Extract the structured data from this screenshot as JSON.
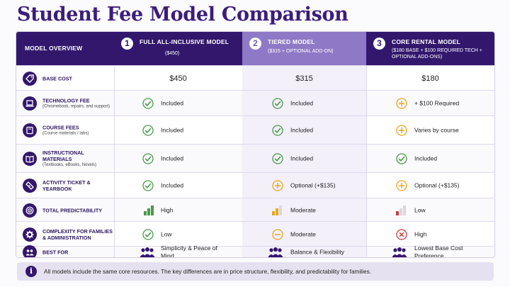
{
  "title": "Student Fee Model Comparison",
  "header": {
    "overview_label": "MODEL OVERVIEW",
    "models": [
      {
        "number": "1",
        "name": "FULL ALL-INCLUSIVE MODEL",
        "subtitle": "($450)"
      },
      {
        "number": "2",
        "name": "TIERED MODEL",
        "subtitle": "($315 + OPTIONAL ADD-ON)"
      },
      {
        "number": "3",
        "name": "CORE RENTAL MODEL",
        "subtitle": "($180 BASE + $100 REQUIRED TECH + OPTIONAL ADD-ONS)"
      }
    ]
  },
  "rows": [
    {
      "icon": "tag-icon",
      "label": "BASE COST",
      "sub": "",
      "values": [
        {
          "text": "$450"
        },
        {
          "text": "$315"
        },
        {
          "text": "$180"
        }
      ]
    },
    {
      "icon": "laptop-icon",
      "label": "TECHNOLOGY FEE",
      "sub": "(Chromebook, repairs, and support)",
      "values": [
        {
          "status": "check",
          "text": "Included"
        },
        {
          "status": "check",
          "text": "Included"
        },
        {
          "status": "plus",
          "text": "+ $100 Required"
        }
      ]
    },
    {
      "icon": "book-icon",
      "label": "COURSE FEES",
      "sub": "(Course materials / labs)",
      "values": [
        {
          "status": "check",
          "text": "Included"
        },
        {
          "status": "check",
          "text": "Included"
        },
        {
          "status": "plus",
          "text": "Varies by course"
        }
      ]
    },
    {
      "icon": "open-book-icon",
      "label": "INSTRUCTIONAL MATERIALS",
      "sub": "(Textbooks, eBooks, Novels)",
      "values": [
        {
          "status": "check",
          "text": "Included"
        },
        {
          "status": "check",
          "text": "Included"
        },
        {
          "status": "check",
          "text": "Included"
        }
      ]
    },
    {
      "icon": "ticket-icon",
      "label": "ACTIVITY TICKET & YEARBOOK",
      "sub": "",
      "values": [
        {
          "status": "check",
          "text": "Included"
        },
        {
          "status": "plus",
          "text": "Optional (+$135)"
        },
        {
          "status": "plus",
          "text": "Optional (+$135)"
        }
      ]
    },
    {
      "icon": "target-icon",
      "label": "TOTAL PREDICTABILITY",
      "sub": "",
      "values": [
        {
          "level": "high",
          "color": "#4a9a4a",
          "text": "High"
        },
        {
          "level": "moderate",
          "color": "#e8a71c",
          "text": "Moderate"
        },
        {
          "level": "low",
          "color": "#c44040",
          "text": "Low"
        }
      ]
    },
    {
      "icon": "gear-icon",
      "label": "COMPLEXITY FOR FAMILIES & ADMINISTRATION",
      "sub": "",
      "values": [
        {
          "status": "check",
          "text": "Low"
        },
        {
          "status": "minus",
          "text": "Moderate"
        },
        {
          "status": "cross",
          "text": "High"
        }
      ]
    },
    {
      "icon": "users-icon",
      "label": "BEST FOR",
      "sub": "",
      "values": [
        {
          "text": "Simplicity & Peace of Mind"
        },
        {
          "text": "Balance & Flexibility"
        },
        {
          "text": "Lowest Base Cost Preference"
        }
      ]
    }
  ],
  "footer": {
    "text": "All models include the same core resources. The key differences are in price structure, flexibility, and predictability for families."
  },
  "colors": {
    "primary": "#33176d",
    "accent": "#8e79c6",
    "check": "#4a9a4a",
    "plus": "#e8a71c",
    "cross": "#c44040"
  }
}
